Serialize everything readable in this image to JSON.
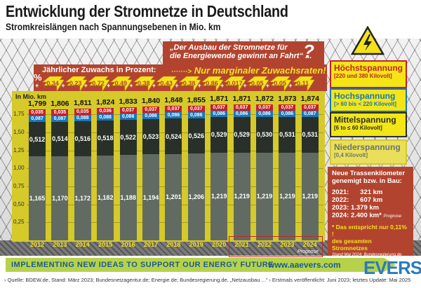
{
  "header": {
    "title": "Entwicklung der Stromnetze in Deutschland",
    "subtitle": "Stromkreislängen nach Spannungsebenen in Mio. km"
  },
  "banner": {
    "quote_line1": "„Der Ausbau der Stromnetze für",
    "quote_line2": "die Energiewende gewinnt an Fahrt“ ...",
    "question_mark": "?",
    "arrow": "·······>",
    "marginal": "Nur marginaler Zuwachsraten!",
    "growth_label": "Jährlicher Zuwachs in Prozent:",
    "percent_symbol": "%"
  },
  "chart_data": {
    "type": "bar",
    "stacked": true,
    "title": "Entwicklung der Stromnetze in Deutschland",
    "subtitle": "Stromkreislängen nach Spannungsebenen in Mio. km",
    "ylabel": "In Mio. km",
    "xlabel": "",
    "ylim": [
      0,
      1.9
    ],
    "yticks": [
      "0,25",
      "0,50",
      "0,75",
      "1,00",
      "1,25",
      "1,50",
      "1,75"
    ],
    "grid": true,
    "categories": [
      "2012",
      "2013",
      "2014",
      "2015",
      "2016",
      "2017",
      "2018",
      "2019",
      "2020",
      "2021",
      "2022",
      "2023",
      "2024"
    ],
    "series": [
      {
        "name": "Niederspannung",
        "range": "[0,4 Kilovolt]",
        "color": "#616b62",
        "values": [
          1.165,
          1.17,
          1.172,
          1.182,
          1.188,
          1.194,
          1.201,
          1.206,
          1.219,
          1.219,
          1.219,
          1.219,
          1.219
        ],
        "labels": [
          "1,165",
          "1,170",
          "1,172",
          "1,182",
          "1,188",
          "1,194",
          "1,201",
          "1,206",
          "1,219",
          "1,219",
          "1,219",
          "1,219",
          "1,219"
        ]
      },
      {
        "name": "Mittelspannung",
        "range": "[6 to ≤ 60 Kilovolt]",
        "color": "#293029",
        "values": [
          0.512,
          0.514,
          0.516,
          0.518,
          0.522,
          0.523,
          0.524,
          0.526,
          0.529,
          0.529,
          0.53,
          0.531,
          0.531
        ],
        "labels": [
          "0,512",
          "0,514",
          "0,516",
          "0,518",
          "0,522",
          "0,523",
          "0,524",
          "0,526",
          "0,529",
          "0,529",
          "0,530",
          "0,531",
          "0,531"
        ]
      },
      {
        "name": "Hochspannung",
        "range": "[> 60 bis < 220 Kilovolt]",
        "color": "#1577c0",
        "values": [
          0.087,
          0.087,
          0.088,
          0.088,
          0.086,
          0.086,
          0.086,
          0.086,
          0.086,
          0.086,
          0.086,
          0.086,
          0.087
        ],
        "labels": [
          "0,087",
          "0,087",
          "0,088",
          "0,088",
          "0,086",
          "0,086",
          "0,086",
          "0,086",
          "0,086",
          "0,086",
          "0,086",
          "0,086",
          "0,087"
        ]
      },
      {
        "name": "Höchstspannung",
        "range": "[220 und 380 Kilovolt]",
        "color": "#c6202a",
        "values": [
          0.035,
          0.035,
          0.035,
          0.036,
          0.037,
          0.037,
          0.037,
          0.037,
          0.037,
          0.037,
          0.037,
          0.037,
          0.037
        ],
        "labels": [
          "0,035",
          "0,035",
          "0,035",
          "0,036",
          "0,037",
          "0,037",
          "0,037",
          "0,037",
          "0,037",
          "0,037",
          "0,037",
          "0,037",
          "0,037"
        ]
      }
    ],
    "totals": [
      "1,799",
      "1,806",
      "1,811",
      "1,824",
      "1,833",
      "1,840",
      "1,848",
      "1,855",
      "1,871",
      "1,871",
      "1,872",
      "1,873",
      "1,874"
    ],
    "growth_percent": [
      "0,34",
      "0,23",
      "0,72",
      "0,49",
      "0,38",
      "0,43",
      "0,38",
      "0,86",
      "0,017",
      "0,05",
      "0,05",
      "0,11"
    ],
    "annotations": [
      "Prognose"
    ]
  },
  "legend": [
    {
      "name": "Höchstspannung",
      "range": "[220 und 380 Kilovolt]"
    },
    {
      "name": "Hochspannung",
      "range": "[> 60 bis < 220 Kilovolt]"
    },
    {
      "name": "Mittelspannung",
      "range": "[6 to ≤ 60 Kilovolt]"
    },
    {
      "name": "Niederspannung",
      "range": "[0,4 Kilovolt]"
    }
  ],
  "info_box": {
    "heading_line1": "Neue Trassenkilometer",
    "heading_line2": "genemigt bzw. in Bau:",
    "rows": [
      {
        "year": "2021:",
        "value": "321 km"
      },
      {
        "year": "2022:",
        "value": "607 km"
      },
      {
        "year": "2023:",
        "value": "1.379 km"
      },
      {
        "year": "2024:",
        "value": "2.400 km*",
        "note": "Prognose"
      }
    ],
    "note_line1": "* Das entspricht nur 0,11% !",
    "note_line2": "des gesamten Stromnetzes",
    "source": "Stand Mai 2024, Bundesregierung.de"
  },
  "footer_band": {
    "slogan": "IMPLEMENTING NEW IDEAS TO SUPPORT OUR ENERGY FUTURE",
    "url": "www.aaevers.com",
    "logo": "EVERS"
  },
  "footer": {
    "sources": "› Quelle: BDEW.de, Stand: März 2023; Bundesnetzagentur.de; Energie.de; Bundesregierung.de, „Netzausbau ...“ › Erstmals veröffentlicht: Juni 2023; letztes Update: Mai 2025"
  }
}
